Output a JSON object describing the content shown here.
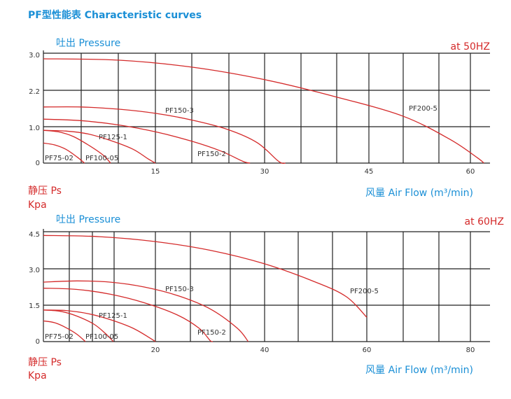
{
  "title": "PF型性能表  Characteristic curves",
  "colors": {
    "title": "#1a8fd6",
    "curve": "#d42a2a",
    "grid": "#222222",
    "label_red": "#d42a2a"
  },
  "chart_data": [
    {
      "type": "line",
      "frequency_label": "at  50HZ",
      "y_top_label": "吐出 Pressure",
      "y_bottom_label_1": "静压 Ps",
      "y_bottom_label_2": "Kpa",
      "x_label": "风量  Air Flow (m³/min)",
      "x_ticks": [
        "15",
        "30",
        "45",
        "60"
      ],
      "x_tick_values": [
        15,
        30,
        45,
        60
      ],
      "y_ticks": [
        "3.0",
        "2.2",
        "1.0",
        "0"
      ],
      "y_tick_values": [
        3.0,
        2.2,
        1.0,
        0
      ],
      "xlim": [
        0,
        65
      ],
      "grid": true,
      "series": [
        {
          "name": "PF75-02",
          "points": [
            [
              0,
              0.55
            ],
            [
              1.5,
              0.5
            ],
            [
              3,
              0.38
            ],
            [
              4.5,
              0.17
            ],
            [
              5.5,
              0
            ]
          ]
        },
        {
          "name": "PF100-05",
          "points": [
            [
              0,
              0.9
            ],
            [
              2,
              0.86
            ],
            [
              4,
              0.73
            ],
            [
              6,
              0.5
            ],
            [
              8,
              0.22
            ],
            [
              9,
              0
            ]
          ]
        },
        {
          "name": "PF125-1",
          "points": [
            [
              0,
              0.9
            ],
            [
              3,
              0.88
            ],
            [
              6,
              0.8
            ],
            [
              9,
              0.62
            ],
            [
              12,
              0.38
            ],
            [
              14,
              0.12
            ],
            [
              15,
              0
            ]
          ]
        },
        {
          "name": "PF150-2",
          "points": [
            [
              0,
              1.25
            ],
            [
              5,
              1.2
            ],
            [
              10,
              1.06
            ],
            [
              15,
              0.86
            ],
            [
              20,
              0.6
            ],
            [
              24,
              0.33
            ],
            [
              27,
              0.05
            ],
            [
              28,
              0
            ]
          ]
        },
        {
          "name": "PF150-3",
          "points": [
            [
              0,
              1.65
            ],
            [
              5,
              1.65
            ],
            [
              10,
              1.58
            ],
            [
              15,
              1.44
            ],
            [
              20,
              1.22
            ],
            [
              25,
              0.92
            ],
            [
              29,
              0.56
            ],
            [
              32,
              0.05
            ],
            [
              33,
              0
            ]
          ]
        },
        {
          "name": "PF200-5",
          "points": [
            [
              0,
              2.88
            ],
            [
              10,
              2.85
            ],
            [
              20,
              2.7
            ],
            [
              30,
              2.43
            ],
            [
              40,
              2.0
            ],
            [
              50,
              1.35
            ],
            [
              57,
              0.65
            ],
            [
              61,
              0.15
            ],
            [
              62,
              0
            ]
          ]
        }
      ],
      "curve_labels": [
        "PF75-02",
        "PF100-05",
        "PF125-1",
        "PF150-2",
        "PF150-3",
        "PF200-5"
      ]
    },
    {
      "type": "line",
      "frequency_label": "at  60HZ",
      "y_top_label": "吐出 Pressure",
      "y_bottom_label_1": "静压 Ps",
      "y_bottom_label_2": "Kpa",
      "x_label": "风量  Air Flow (m³/min)",
      "x_ticks": [
        "20",
        "40",
        "60",
        "80"
      ],
      "x_tick_values": [
        20,
        40,
        60,
        80
      ],
      "y_ticks": [
        "4.5",
        "3.0",
        "1.5",
        "0"
      ],
      "y_tick_values": [
        4.5,
        3.0,
        1.5,
        0
      ],
      "xlim": [
        0,
        86
      ],
      "grid": true,
      "series": [
        {
          "name": "PF75-02",
          "points": [
            [
              0,
              0.85
            ],
            [
              2,
              0.78
            ],
            [
              4,
              0.58
            ],
            [
              6,
              0.3
            ],
            [
              7.5,
              0
            ]
          ]
        },
        {
          "name": "PF100-05",
          "points": [
            [
              0,
              1.3
            ],
            [
              3,
              1.25
            ],
            [
              6,
              1.05
            ],
            [
              9,
              0.72
            ],
            [
              11,
              0.35
            ],
            [
              12.5,
              0
            ]
          ]
        },
        {
          "name": "PF125-1",
          "points": [
            [
              0,
              1.3
            ],
            [
              4,
              1.28
            ],
            [
              8,
              1.15
            ],
            [
              12,
              0.9
            ],
            [
              16,
              0.55
            ],
            [
              19,
              0.15
            ],
            [
              20,
              0
            ]
          ]
        },
        {
          "name": "PF150-2",
          "points": [
            [
              0,
              2.2
            ],
            [
              6,
              2.15
            ],
            [
              12,
              1.95
            ],
            [
              18,
              1.6
            ],
            [
              24,
              1.1
            ],
            [
              28,
              0.55
            ],
            [
              30,
              0.05
            ],
            [
              30.5,
              0
            ]
          ]
        },
        {
          "name": "PF150-3",
          "points": [
            [
              0,
              2.45
            ],
            [
              6,
              2.5
            ],
            [
              12,
              2.45
            ],
            [
              18,
              2.25
            ],
            [
              24,
              1.9
            ],
            [
              30,
              1.35
            ],
            [
              35,
              0.55
            ],
            [
              37,
              0
            ]
          ]
        },
        {
          "name": "PF200-5",
          "points": [
            [
              0,
              4.35
            ],
            [
              10,
              4.3
            ],
            [
              20,
              4.1
            ],
            [
              30,
              3.75
            ],
            [
              40,
              3.2
            ],
            [
              50,
              2.45
            ],
            [
              56,
              1.85
            ],
            [
              60,
              1.0
            ]
          ]
        }
      ],
      "curve_labels": [
        "PF75-02",
        "PF100-05",
        "PF125-1",
        "PF150-2",
        "PF150-3",
        "PF200-5"
      ]
    }
  ]
}
